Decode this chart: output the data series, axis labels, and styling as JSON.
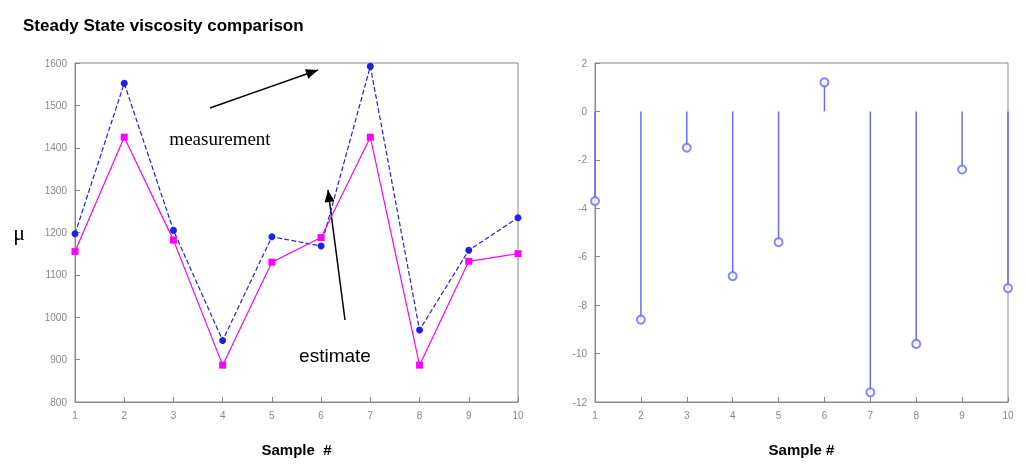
{
  "chart_data": [
    {
      "type": "line",
      "title": "Steady State viscosity comparison",
      "xlabel": "Sample  #",
      "ylabel": "μ",
      "x": [
        1,
        2,
        3,
        4,
        5,
        6,
        7,
        8,
        9,
        10
      ],
      "series": [
        {
          "color": "#1f1fe6",
          "marker": "circle",
          "line_style": "dashed",
          "values": [
            1197,
            1552,
            1205,
            945,
            1190,
            1168,
            1592,
            970,
            1158,
            1235
          ]
        },
        {
          "color": "#ff00ff",
          "marker": "square",
          "line_style": "solid",
          "values": [
            1155,
            1425,
            1182,
            887,
            1130,
            1188,
            1425,
            887,
            1132,
            1150
          ]
        }
      ],
      "annotations": [
        "measurement",
        "estimate"
      ],
      "xlim": [
        1,
        10
      ],
      "xticks": [
        1,
        2,
        3,
        4,
        5,
        6,
        7,
        8,
        9,
        10
      ],
      "ylim": [
        800,
        1600
      ],
      "yticks": [
        800,
        900,
        1000,
        1100,
        1200,
        1300,
        1400,
        1500,
        1600
      ],
      "grid": false
    },
    {
      "type": "lollipop",
      "xlabel": "Sample #",
      "x": [
        1,
        2,
        3,
        4,
        5,
        6,
        7,
        8,
        9,
        10
      ],
      "series": [
        {
          "color": "#6a6aff",
          "marker": "circle",
          "values": [
            -3.7,
            -8.6,
            -1.5,
            -6.8,
            -5.4,
            1.2,
            -11.6,
            -9.6,
            -2.4,
            -7.3
          ]
        }
      ],
      "xlim": [
        1,
        10
      ],
      "xticks": [
        1,
        2,
        3,
        4,
        5,
        6,
        7,
        8,
        9,
        10
      ],
      "ylim": [
        -12,
        2
      ],
      "yticks": [
        -12,
        -10,
        -8,
        -6,
        -4,
        -2,
        0,
        2
      ],
      "grid": false
    }
  ]
}
